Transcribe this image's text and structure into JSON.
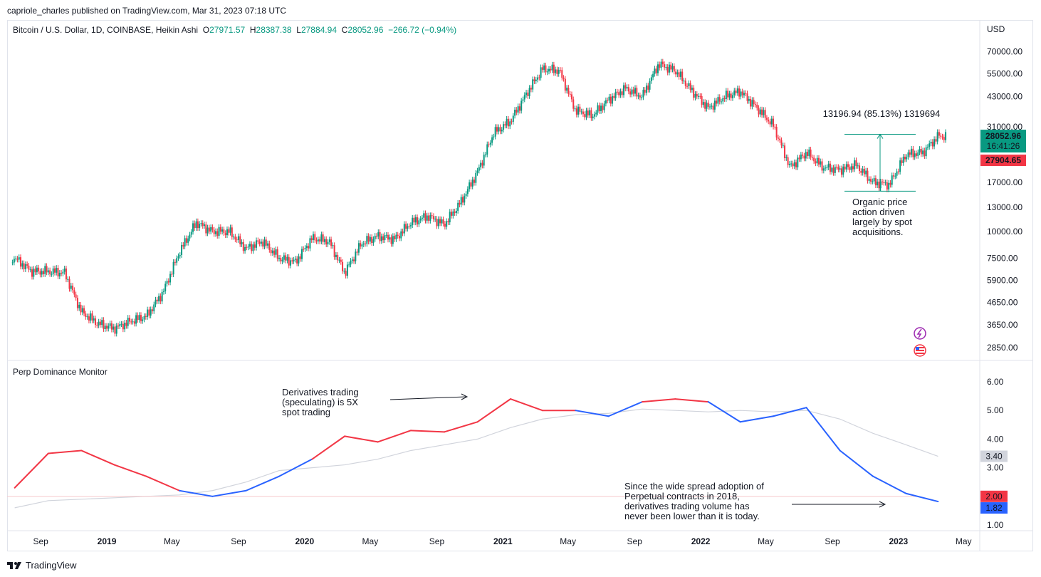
{
  "header": {
    "published": "capriole_charles published on TradingView.com, Mar 31, 2023 07:18 UTC"
  },
  "symbol": {
    "name": "Bitcoin / U.S. Dollar, 1D, COINBASE, Heikin Ashi",
    "open": "O27971.57",
    "high": "H28387.38",
    "low": "L27884.94",
    "close": "C28052.96",
    "change": "−266.72 (−0.94%)"
  },
  "indicator": {
    "name": "Perp Dominance Monitor"
  },
  "price_axis": {
    "currency": "USD",
    "ticks": [
      "70000.00",
      "55000.00",
      "43000.00",
      "31000.00",
      "17000.00",
      "13000.00",
      "10000.00",
      "7500.00",
      "5900.00",
      "4650.00",
      "3650.00",
      "2850.00"
    ]
  },
  "price_labels": {
    "last": "28052.96",
    "countdown": "16:41:26",
    "second": "27904.65"
  },
  "osc_axis": {
    "ticks": [
      "6.00",
      "5.00",
      "4.00",
      "3.00",
      "1.00"
    ],
    "labels": {
      "ma": "3.40",
      "level": "2.00",
      "value": "1.82"
    }
  },
  "time_axis": {
    "ticks": [
      "Sep",
      "2019",
      "May",
      "Sep",
      "2020",
      "May",
      "Sep",
      "2021",
      "May",
      "Sep",
      "2022",
      "May",
      "Sep",
      "2023",
      "May"
    ]
  },
  "annotations": {
    "measure": "13196.94 (85.13%) 1319694",
    "organic": [
      "Organic price",
      "action driven",
      "largely by spot",
      "acquisitions."
    ],
    "deriv": [
      "Derivatives trading",
      "(speculating) is 5X",
      "spot trading"
    ],
    "since": [
      "Since the wide spread adoption of",
      "Perpetual contracts in 2018,",
      "derivatives trading volume has",
      "never been lower than it is today."
    ]
  },
  "footer": {
    "brand": "TradingView"
  },
  "colors": {
    "up": "#089981",
    "down": "#f23645",
    "perp_high": "#f23645",
    "perp_low": "#2962ff",
    "ma": "#d1d4dc",
    "level": "#f7c9cc"
  },
  "chart_data": [
    {
      "type": "candlestick",
      "title": "Bitcoin / U.S. Dollar, 1D, COINBASE, Heikin Ashi",
      "y_scale": "log",
      "ylim": [
        2500,
        80000
      ],
      "x": [
        "2018-07",
        "2018-08",
        "2018-09",
        "2018-10",
        "2018-11",
        "2018-12",
        "2019-01",
        "2019-02",
        "2019-03",
        "2019-04",
        "2019-05",
        "2019-06",
        "2019-07",
        "2019-08",
        "2019-09",
        "2019-10",
        "2019-11",
        "2019-12",
        "2020-01",
        "2020-02",
        "2020-03",
        "2020-04",
        "2020-05",
        "2020-06",
        "2020-07",
        "2020-08",
        "2020-09",
        "2020-10",
        "2020-11",
        "2020-12",
        "2021-01",
        "2021-02",
        "2021-03",
        "2021-04",
        "2021-05",
        "2021-06",
        "2021-07",
        "2021-08",
        "2021-09",
        "2021-10",
        "2021-11",
        "2021-12",
        "2022-01",
        "2022-02",
        "2022-03",
        "2022-04",
        "2022-05",
        "2022-06",
        "2022-07",
        "2022-08",
        "2022-09",
        "2022-10",
        "2022-11",
        "2022-12",
        "2023-01",
        "2023-02",
        "2023-03"
      ],
      "close": [
        7500,
        6500,
        6500,
        6400,
        4200,
        3700,
        3500,
        3800,
        4000,
        5200,
        8000,
        11000,
        10000,
        10000,
        8300,
        9000,
        7500,
        7200,
        9300,
        9000,
        6400,
        8800,
        9500,
        9200,
        11000,
        11800,
        10800,
        13700,
        19000,
        29000,
        33000,
        45000,
        58000,
        57000,
        37000,
        35000,
        41500,
        47000,
        43000,
        61000,
        57000,
        46000,
        38000,
        43000,
        45500,
        38000,
        31500,
        20000,
        23500,
        20000,
        19500,
        20500,
        17000,
        16600,
        23000,
        23500,
        28052.96
      ]
    },
    {
      "type": "line",
      "title": "Perp Dominance Monitor",
      "ylim": [
        1,
        6.5
      ],
      "x": [
        "2018-07",
        "2018-09",
        "2018-11",
        "2019-01",
        "2019-03",
        "2019-05",
        "2019-07",
        "2019-09",
        "2019-11",
        "2020-01",
        "2020-03",
        "2020-05",
        "2020-07",
        "2020-09",
        "2020-11",
        "2021-01",
        "2021-03",
        "2021-05",
        "2021-07",
        "2021-09",
        "2021-11",
        "2022-01",
        "2022-03",
        "2022-05",
        "2022-07",
        "2022-09",
        "2022-11",
        "2023-01",
        "2023-03"
      ],
      "series": [
        {
          "values": [
            2.3,
            3.5,
            3.6,
            3.1,
            2.7,
            2.2,
            2.0,
            2.2,
            2.7,
            3.3,
            4.1,
            3.9,
            4.3,
            4.25,
            4.6,
            5.4,
            5.0,
            5.0,
            4.8,
            5.3,
            5.4,
            5.3,
            4.6,
            4.8,
            5.1,
            3.6,
            2.7,
            2.1,
            1.82
          ]
        },
        {
          "values": [
            1.6,
            1.85,
            1.9,
            1.95,
            2.0,
            2.05,
            2.2,
            2.5,
            2.9,
            3.0,
            3.1,
            3.3,
            3.6,
            3.8,
            4.0,
            4.4,
            4.7,
            4.85,
            4.9,
            5.05,
            5.0,
            4.95,
            5.0,
            4.95,
            5.0,
            4.7,
            4.2,
            3.8,
            3.4
          ]
        },
        {
          "values": [
            2.0,
            2.0,
            2.0,
            2.0,
            2.0,
            2.0,
            2.0,
            2.0,
            2.0,
            2.0,
            2.0,
            2.0,
            2.0,
            2.0,
            2.0,
            2.0,
            2.0,
            2.0,
            2.0,
            2.0,
            2.0,
            2.0,
            2.0,
            2.0,
            2.0,
            2.0,
            2.0,
            2.0,
            2.0
          ]
        }
      ]
    }
  ]
}
